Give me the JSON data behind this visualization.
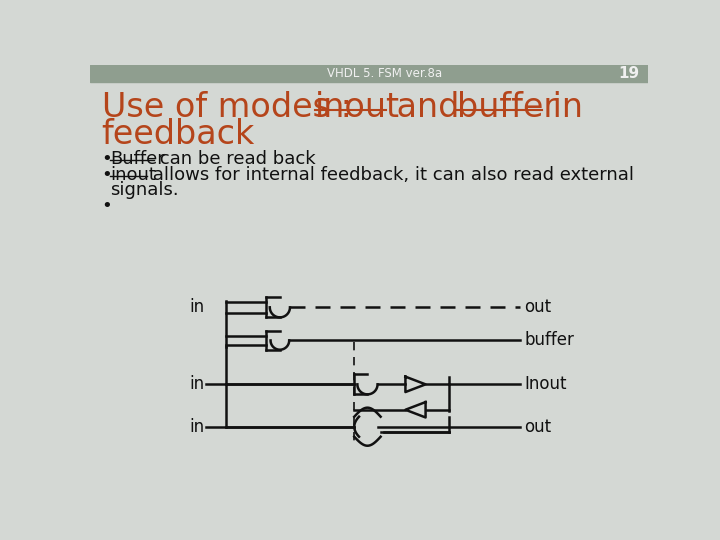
{
  "header_text": "VHDL 5. FSM ver.8a",
  "page_num": "19",
  "title_seg1": "Use of modes : ",
  "title_inout": "inout",
  "title_seg3": " and ",
  "title_buffer": "buffer",
  "title_seg5": " in",
  "title_line2": "feedback",
  "bullet1_ul": "Buffer",
  "bullet1_rest": " can be read back",
  "bullet2_ul": "inout",
  "bullet2_rest": " allows for internal feedback, it can also read external",
  "bullet2_cont": "signals.",
  "header_bg": "#8f9e8f",
  "title_color": "#b5451b",
  "body_color": "#111111",
  "bg_color": "#d4d8d4",
  "diagram_color": "#111111"
}
